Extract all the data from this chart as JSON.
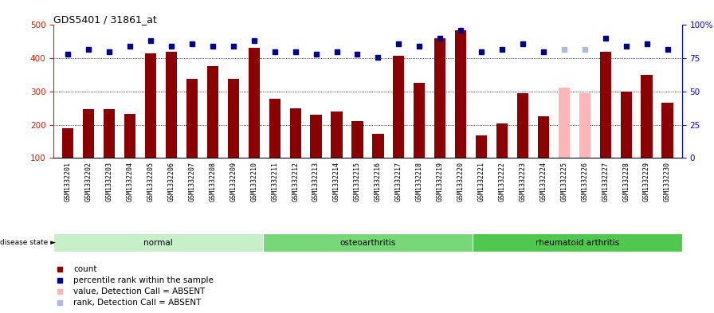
{
  "title": "GDS5401 / 31861_at",
  "samples": [
    "GSM1332201",
    "GSM1332202",
    "GSM1332203",
    "GSM1332204",
    "GSM1332205",
    "GSM1332206",
    "GSM1332207",
    "GSM1332208",
    "GSM1332209",
    "GSM1332210",
    "GSM1332211",
    "GSM1332212",
    "GSM1332213",
    "GSM1332214",
    "GSM1332215",
    "GSM1332216",
    "GSM1332217",
    "GSM1332218",
    "GSM1332219",
    "GSM1332220",
    "GSM1332221",
    "GSM1332222",
    "GSM1332223",
    "GSM1332224",
    "GSM1332225",
    "GSM1332226",
    "GSM1332227",
    "GSM1332228",
    "GSM1332229",
    "GSM1332230"
  ],
  "counts": [
    190,
    248,
    248,
    232,
    416,
    420,
    338,
    377,
    338,
    432,
    278,
    249,
    230,
    241,
    211,
    172,
    408,
    327,
    460,
    484,
    168,
    204,
    294,
    226,
    313,
    295,
    420,
    300,
    349,
    267
  ],
  "absent_mask": [
    false,
    false,
    false,
    false,
    false,
    false,
    false,
    false,
    false,
    false,
    false,
    false,
    false,
    false,
    false,
    false,
    false,
    false,
    false,
    false,
    false,
    false,
    false,
    false,
    true,
    true,
    false,
    false,
    false,
    false
  ],
  "percentile_ranks": [
    78,
    82,
    80,
    84,
    88,
    84,
    86,
    84,
    84,
    88,
    80,
    80,
    78,
    80,
    78,
    76,
    86,
    84,
    90,
    96,
    80,
    82,
    86,
    80,
    82,
    82,
    90,
    84,
    86,
    82
  ],
  "absent_rank_mask": [
    false,
    false,
    false,
    false,
    false,
    false,
    false,
    false,
    false,
    false,
    false,
    false,
    false,
    false,
    false,
    false,
    false,
    false,
    false,
    false,
    false,
    false,
    false,
    false,
    true,
    true,
    false,
    false,
    false,
    false
  ],
  "groups": [
    {
      "label": "normal",
      "start": 0,
      "end": 10
    },
    {
      "label": "osteoarthritis",
      "start": 10,
      "end": 20
    },
    {
      "label": "rheumatoid arthritis",
      "start": 20,
      "end": 30
    }
  ],
  "group_colors": [
    "#c8f0c8",
    "#78d878",
    "#50c850"
  ],
  "bar_color": "#8b0000",
  "bar_absent_color": "#ffb6b6",
  "dot_color": "#00008b",
  "dot_absent_color": "#b0b8e0",
  "ylim_left": [
    100,
    500
  ],
  "ylim_right": [
    0,
    100
  ],
  "yticks_left": [
    100,
    200,
    300,
    400,
    500
  ],
  "yticks_right": [
    0,
    25,
    50,
    75,
    100
  ],
  "ytick_labels_right": [
    "0",
    "25",
    "50",
    "75",
    "100%"
  ],
  "grid_values": [
    200,
    300,
    400
  ],
  "bar_width": 0.55
}
